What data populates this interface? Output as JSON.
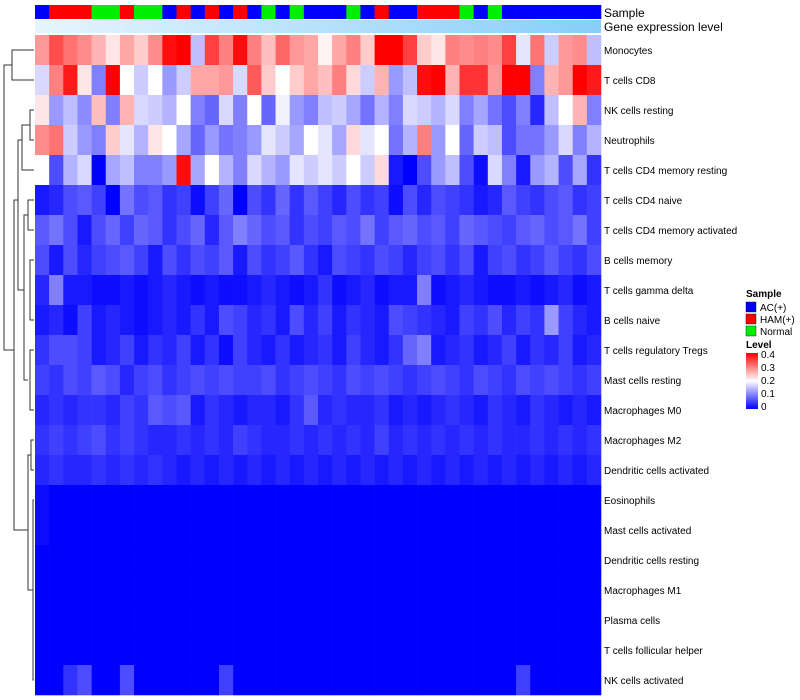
{
  "chart_data": {
    "type": "heatmap",
    "title": "",
    "annotations": {
      "sample_label": "Sample",
      "expression_label": "Gene expression level",
      "sample_groups": [
        "AC",
        "HAM",
        "HAM",
        "HAM",
        "Normal",
        "Normal",
        "HAM",
        "Normal",
        "Normal",
        "AC",
        "HAM",
        "AC",
        "HAM",
        "AC",
        "HAM",
        "AC",
        "Normal",
        "AC",
        "Normal",
        "AC",
        "AC",
        "AC",
        "Normal",
        "AC",
        "HAM",
        "AC",
        "AC",
        "HAM",
        "HAM",
        "HAM",
        "Normal",
        "AC",
        "Normal",
        "AC",
        "AC",
        "AC",
        "AC",
        "AC",
        "AC",
        "AC"
      ]
    },
    "rows": [
      "Monocytes",
      "T cells CD8",
      "NK cells resting",
      "Neutrophils",
      "T cells CD4 memory resting",
      "T cells CD4 naive",
      "T cells CD4 memory activated",
      "B cells memory",
      "T cells gamma delta",
      "B cells naive",
      "T cells regulatory  Tregs",
      "Mast cells resting",
      "Macrophages M0",
      "Macrophages M2",
      "Dendritic cells activated",
      "Eosinophils",
      "Mast cells activated",
      "Dendritic cells resting",
      "Macrophages M1",
      "Plasma cells",
      "T cells follicular helper",
      "NK cells activated"
    ],
    "values": [
      [
        0.28,
        0.34,
        0.31,
        0.29,
        0.26,
        0.22,
        0.27,
        0.24,
        0.29,
        0.39,
        0.4,
        0.15,
        0.35,
        0.3,
        0.39,
        0.3,
        0.25,
        0.32,
        0.28,
        0.27,
        0.21,
        0.27,
        0.3,
        0.24,
        0.4,
        0.4,
        0.35,
        0.24,
        0.22,
        0.3,
        0.29,
        0.3,
        0.29,
        0.35,
        0.18,
        0.31,
        0.16,
        0.28,
        0.29,
        0.15
      ],
      [
        0.17,
        0.3,
        0.38,
        0.22,
        0.1,
        0.4,
        0.2,
        0.16,
        0.2,
        0.12,
        0.16,
        0.27,
        0.27,
        0.28,
        0.17,
        0.33,
        0.24,
        0.2,
        0.24,
        0.27,
        0.25,
        0.3,
        0.23,
        0.16,
        0.26,
        0.12,
        0.15,
        0.39,
        0.4,
        0.26,
        0.36,
        0.36,
        0.28,
        0.4,
        0.4,
        0.1,
        0.26,
        0.28,
        0.4,
        0.38
      ],
      [
        0.22,
        0.12,
        0.15,
        0.11,
        0.25,
        0.1,
        0.26,
        0.17,
        0.16,
        0.14,
        0.2,
        0.1,
        0.08,
        0.17,
        0.1,
        0.2,
        0.08,
        0.19,
        0.12,
        0.1,
        0.15,
        0.16,
        0.13,
        0.09,
        0.14,
        0.1,
        0.17,
        0.16,
        0.14,
        0.17,
        0.1,
        0.13,
        0.09,
        0.06,
        0.1,
        0.03,
        0.15,
        0.2,
        0.26,
        0.1
      ],
      [
        0.29,
        0.31,
        0.16,
        0.12,
        0.1,
        0.24,
        0.18,
        0.14,
        0.22,
        0.2,
        0.13,
        0.08,
        0.12,
        0.09,
        0.1,
        0.12,
        0.18,
        0.16,
        0.13,
        0.2,
        0.18,
        0.13,
        0.23,
        0.18,
        0.2,
        0.09,
        0.14,
        0.3,
        0.12,
        0.2,
        0.08,
        0.16,
        0.15,
        0.06,
        0.09,
        0.09,
        0.12,
        0.17,
        0.1,
        0.14
      ],
      [
        0.2,
        0.06,
        0.14,
        0.17,
        0.0,
        0.13,
        0.15,
        0.1,
        0.1,
        0.12,
        0.39,
        0.13,
        0.2,
        0.14,
        0.1,
        0.17,
        0.14,
        0.12,
        0.18,
        0.16,
        0.18,
        0.16,
        0.2,
        0.16,
        0.23,
        0.02,
        0.0,
        0.06,
        0.12,
        0.15,
        0.06,
        0.01,
        0.17,
        0.1,
        0.02,
        0.12,
        0.14,
        0.06,
        0.13,
        0.04
      ],
      [
        0.02,
        0.03,
        0.06,
        0.07,
        0.05,
        0.0,
        0.09,
        0.06,
        0.07,
        0.04,
        0.05,
        0.01,
        0.05,
        0.08,
        0.0,
        0.06,
        0.04,
        0.08,
        0.04,
        0.07,
        0.05,
        0.03,
        0.06,
        0.04,
        0.05,
        0.01,
        0.06,
        0.03,
        0.06,
        0.05,
        0.04,
        0.02,
        0.03,
        0.07,
        0.05,
        0.04,
        0.06,
        0.07,
        0.04,
        0.05
      ],
      [
        0.07,
        0.09,
        0.06,
        0.02,
        0.06,
        0.08,
        0.05,
        0.08,
        0.07,
        0.04,
        0.06,
        0.08,
        0.03,
        0.07,
        0.1,
        0.08,
        0.06,
        0.07,
        0.04,
        0.06,
        0.05,
        0.07,
        0.06,
        0.09,
        0.05,
        0.07,
        0.08,
        0.06,
        0.07,
        0.05,
        0.08,
        0.07,
        0.06,
        0.05,
        0.07,
        0.08,
        0.06,
        0.07,
        0.09,
        0.05
      ],
      [
        0.06,
        0.02,
        0.06,
        0.03,
        0.05,
        0.06,
        0.07,
        0.05,
        0.02,
        0.06,
        0.04,
        0.06,
        0.05,
        0.07,
        0.02,
        0.06,
        0.04,
        0.05,
        0.07,
        0.04,
        0.02,
        0.06,
        0.05,
        0.04,
        0.06,
        0.05,
        0.03,
        0.05,
        0.06,
        0.04,
        0.06,
        0.02,
        0.05,
        0.06,
        0.04,
        0.05,
        0.07,
        0.05,
        0.04,
        0.06
      ],
      [
        0.03,
        0.1,
        0.02,
        0.02,
        0.01,
        0.01,
        0.02,
        0.01,
        0.02,
        0.03,
        0.02,
        0.01,
        0.02,
        0.01,
        0.01,
        0.02,
        0.03,
        0.02,
        0.01,
        0.02,
        0.04,
        0.01,
        0.02,
        0.03,
        0.01,
        0.02,
        0.02,
        0.1,
        0.01,
        0.02,
        0.03,
        0.02,
        0.01,
        0.01,
        0.02,
        0.01,
        0.02,
        0.03,
        0.01,
        0.02
      ],
      [
        0.02,
        0.03,
        0.01,
        0.05,
        0.02,
        0.03,
        0.02,
        0.01,
        0.02,
        0.03,
        0.02,
        0.04,
        0.02,
        0.06,
        0.05,
        0.03,
        0.04,
        0.02,
        0.06,
        0.03,
        0.05,
        0.02,
        0.04,
        0.03,
        0.02,
        0.06,
        0.05,
        0.04,
        0.03,
        0.02,
        0.05,
        0.04,
        0.06,
        0.03,
        0.05,
        0.04,
        0.12,
        0.05,
        0.03,
        0.02
      ],
      [
        0.04,
        0.06,
        0.06,
        0.05,
        0.02,
        0.03,
        0.05,
        0.02,
        0.04,
        0.03,
        0.05,
        0.02,
        0.04,
        0.01,
        0.05,
        0.03,
        0.02,
        0.04,
        0.02,
        0.03,
        0.04,
        0.02,
        0.05,
        0.03,
        0.02,
        0.04,
        0.08,
        0.1,
        0.02,
        0.03,
        0.04,
        0.02,
        0.03,
        0.05,
        0.02,
        0.04,
        0.03,
        0.05,
        0.02,
        0.03
      ],
      [
        0.05,
        0.04,
        0.06,
        0.05,
        0.07,
        0.06,
        0.03,
        0.05,
        0.06,
        0.04,
        0.05,
        0.06,
        0.05,
        0.06,
        0.05,
        0.05,
        0.06,
        0.04,
        0.05,
        0.06,
        0.05,
        0.04,
        0.06,
        0.05,
        0.06,
        0.05,
        0.04,
        0.05,
        0.06,
        0.05,
        0.04,
        0.06,
        0.05,
        0.04,
        0.06,
        0.05,
        0.06,
        0.05,
        0.04,
        0.05
      ],
      [
        0.03,
        0.04,
        0.03,
        0.04,
        0.04,
        0.03,
        0.05,
        0.04,
        0.07,
        0.06,
        0.07,
        0.02,
        0.04,
        0.03,
        0.02,
        0.03,
        0.03,
        0.02,
        0.04,
        0.07,
        0.03,
        0.04,
        0.03,
        0.03,
        0.04,
        0.02,
        0.03,
        0.02,
        0.03,
        0.04,
        0.03,
        0.02,
        0.04,
        0.03,
        0.02,
        0.04,
        0.03,
        0.02,
        0.03,
        0.02
      ],
      [
        0.04,
        0.05,
        0.04,
        0.05,
        0.06,
        0.04,
        0.05,
        0.04,
        0.03,
        0.03,
        0.04,
        0.03,
        0.04,
        0.03,
        0.05,
        0.04,
        0.03,
        0.03,
        0.04,
        0.03,
        0.04,
        0.03,
        0.04,
        0.03,
        0.05,
        0.03,
        0.04,
        0.03,
        0.04,
        0.03,
        0.04,
        0.03,
        0.04,
        0.03,
        0.03,
        0.04,
        0.03,
        0.04,
        0.03,
        0.04
      ],
      [
        0.03,
        0.04,
        0.03,
        0.03,
        0.04,
        0.03,
        0.04,
        0.03,
        0.04,
        0.03,
        0.02,
        0.03,
        0.02,
        0.03,
        0.02,
        0.03,
        0.02,
        0.03,
        0.02,
        0.03,
        0.02,
        0.03,
        0.02,
        0.03,
        0.02,
        0.03,
        0.02,
        0.03,
        0.02,
        0.03,
        0.02,
        0.03,
        0.02,
        0.03,
        0.02,
        0.03,
        0.02,
        0.03,
        0.02,
        0.03
      ],
      [
        0.01,
        0,
        0,
        0,
        0,
        0,
        0,
        0,
        0,
        0,
        0,
        0,
        0,
        0,
        0,
        0,
        0,
        0,
        0,
        0,
        0,
        0,
        0,
        0,
        0,
        0,
        0,
        0,
        0,
        0,
        0,
        0,
        0,
        0,
        0,
        0,
        0,
        0,
        0,
        0
      ],
      [
        0.01,
        0,
        0,
        0,
        0,
        0,
        0,
        0,
        0,
        0,
        0,
        0,
        0,
        0,
        0,
        0,
        0,
        0,
        0,
        0,
        0,
        0,
        0,
        0,
        0,
        0,
        0,
        0,
        0,
        0,
        0,
        0,
        0,
        0,
        0,
        0,
        0,
        0,
        0,
        0
      ],
      [
        0,
        0,
        0,
        0,
        0,
        0,
        0,
        0,
        0,
        0,
        0,
        0,
        0,
        0,
        0,
        0,
        0,
        0,
        0,
        0,
        0,
        0,
        0,
        0,
        0,
        0,
        0,
        0,
        0,
        0,
        0,
        0,
        0,
        0,
        0,
        0,
        0,
        0,
        0,
        0
      ],
      [
        0,
        0,
        0,
        0,
        0,
        0,
        0,
        0,
        0,
        0,
        0,
        0,
        0,
        0,
        0,
        0,
        0,
        0,
        0,
        0,
        0,
        0,
        0,
        0,
        0,
        0,
        0,
        0,
        0,
        0,
        0,
        0,
        0,
        0,
        0,
        0,
        0,
        0,
        0,
        0
      ],
      [
        0,
        0,
        0,
        0,
        0,
        0,
        0,
        0,
        0,
        0,
        0,
        0,
        0,
        0,
        0,
        0,
        0,
        0,
        0,
        0,
        0,
        0,
        0,
        0,
        0,
        0,
        0,
        0,
        0,
        0,
        0,
        0,
        0,
        0,
        0,
        0,
        0,
        0,
        0,
        0
      ],
      [
        0,
        0,
        0,
        0,
        0,
        0,
        0,
        0,
        0,
        0,
        0,
        0,
        0,
        0,
        0,
        0,
        0,
        0,
        0,
        0,
        0,
        0,
        0,
        0,
        0,
        0,
        0,
        0,
        0,
        0,
        0,
        0,
        0,
        0,
        0,
        0,
        0,
        0,
        0,
        0
      ],
      [
        0,
        0,
        0.04,
        0.06,
        0,
        0,
        0.06,
        0,
        0,
        0,
        0,
        0,
        0,
        0.05,
        0,
        0,
        0,
        0,
        0,
        0,
        0,
        0,
        0,
        0,
        0,
        0,
        0,
        0,
        0,
        0,
        0,
        0,
        0,
        0,
        0.05,
        0,
        0,
        0,
        0,
        0
      ]
    ],
    "color_scale": {
      "min": 0,
      "max": 0.4,
      "low": "#0000ff",
      "mid": "#ffffff",
      "high": "#ff0000"
    },
    "legend": {
      "position": "right",
      "sample_title": "Sample",
      "sample_entries": [
        {
          "key": "AC",
          "label": "AC(+)",
          "color": "#0000ff"
        },
        {
          "key": "HAM",
          "label": "HAM(+)",
          "color": "#ff0000"
        },
        {
          "key": "Normal",
          "label": "Normal",
          "color": "#00ee00"
        }
      ],
      "level_title": "Level",
      "level_ticks": [
        "0.4",
        "0.3",
        "0.2",
        "0.1",
        "0"
      ]
    },
    "expression_bar_color": "#87cefa"
  }
}
